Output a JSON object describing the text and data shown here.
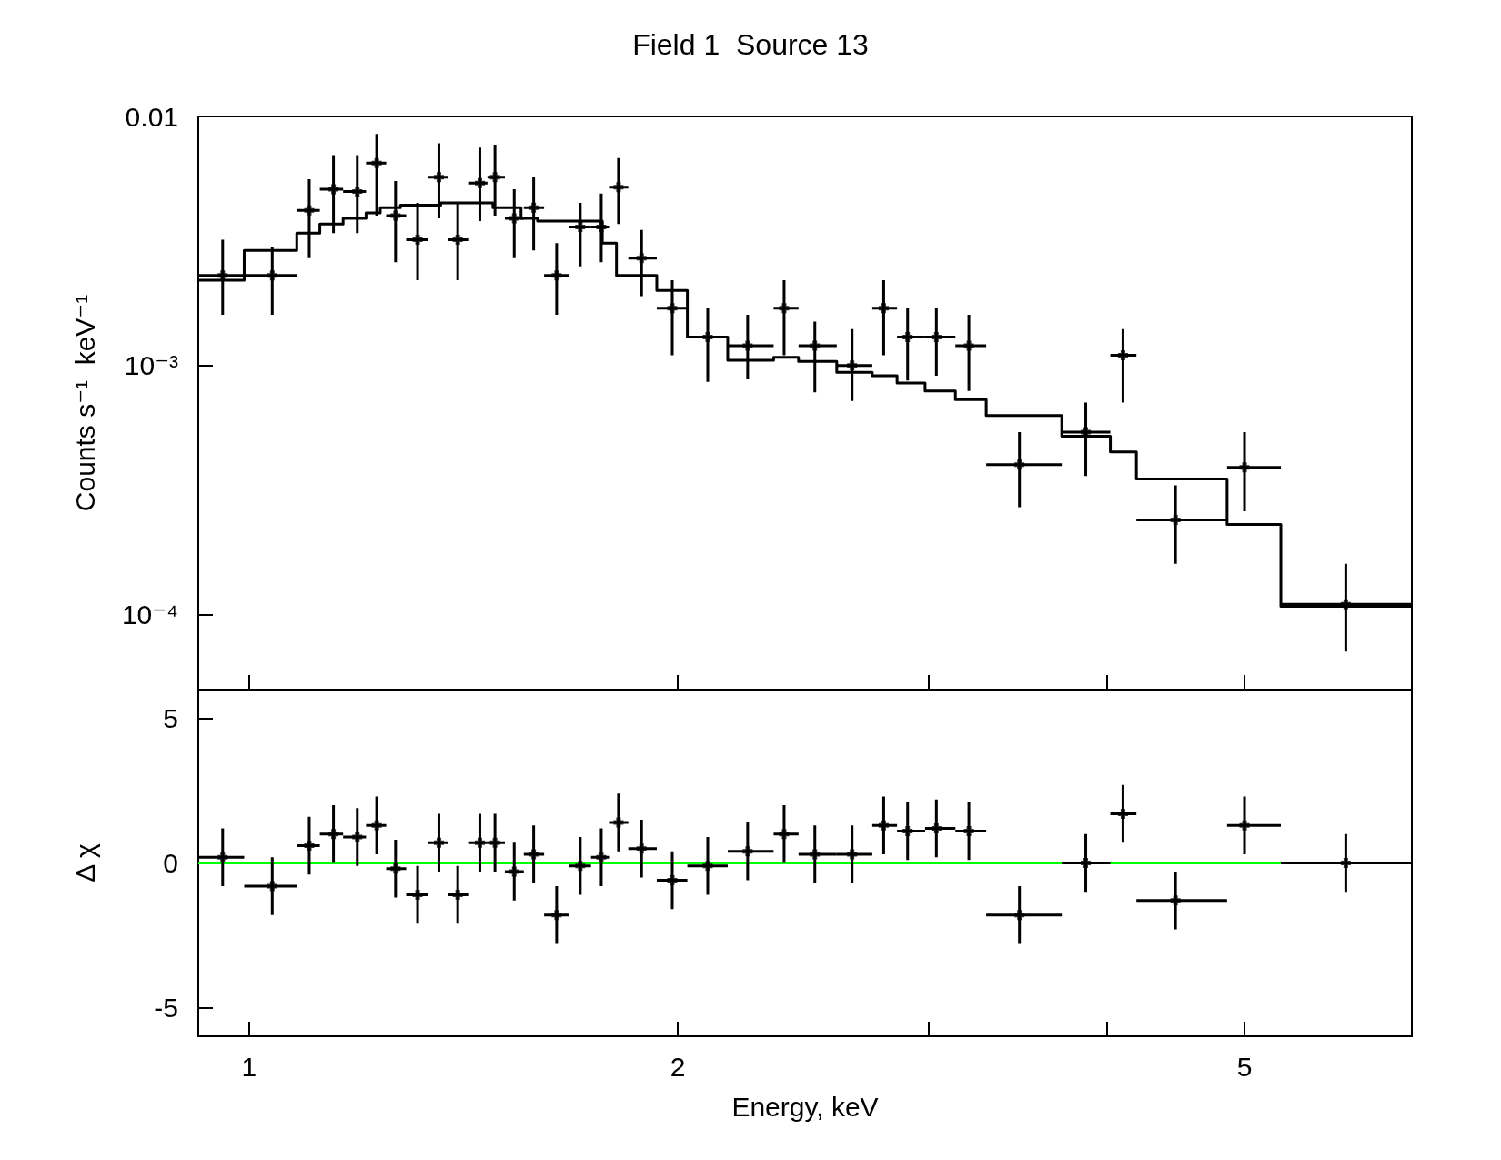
{
  "chart_data": [
    {
      "type": "scatter",
      "title": "Field 1  Source 13",
      "ylabel": "Counts s⁻¹  keV⁻¹",
      "log": "xy",
      "xlim": [
        0.921,
        6.554
      ],
      "xticks": [
        1,
        2,
        3,
        4,
        5
      ],
      "ylim": [
        5e-05,
        0.01
      ],
      "yticks": [
        0.01,
        {
          "value": 0.001,
          "label": "10⁻³"
        },
        {
          "value": 0.0001,
          "label": "10⁻⁴"
        }
      ],
      "tick_labels": "y",
      "grid": false,
      "x": [
        0.958,
        1.038,
        1.102,
        1.146,
        1.191,
        1.229,
        1.267,
        1.313,
        1.359,
        1.401,
        1.452,
        1.488,
        1.535,
        1.584,
        1.644,
        1.708,
        1.767,
        1.817,
        1.886,
        1.982,
        2.099,
        2.239,
        2.375,
        2.496,
        2.651,
        2.79,
        2.9,
        3.038,
        3.202,
        3.475,
        3.868,
        4.108,
        4.472,
        5.0,
        5.89
      ],
      "series": [
        {
          "color": "#000000",
          "marker": "cross",
          "values": [
            0.0023,
            0.0023,
            0.0042,
            0.0051,
            0.005,
            0.0065,
            0.004,
            0.0032,
            0.0057,
            0.0032,
            0.0054,
            0.0057,
            0.0039,
            0.0043,
            0.0023,
            0.0036,
            0.0036,
            0.0052,
            0.0027,
            0.0017,
            0.0013,
            0.0012,
            0.0017,
            0.0012,
            0.001,
            0.0017,
            0.0013,
            0.0013,
            0.0012,
            0.0004,
            0.00054,
            0.0011,
            0.00024,
            0.00039,
            0.00011
          ],
          "errors": [
            [
              0.0016,
              0.0032
            ],
            [
              0.0016,
              0.003
            ],
            [
              0.0027,
              0.0056
            ],
            [
              0.0034,
              0.007
            ],
            [
              0.0034,
              0.007
            ],
            [
              0.004,
              0.0085
            ],
            [
              0.0026,
              0.0055
            ],
            [
              0.0022,
              0.0045
            ],
            [
              0.0039,
              0.0078
            ],
            [
              0.0022,
              0.0045
            ],
            [
              0.0038,
              0.0075
            ],
            [
              0.004,
              0.0077
            ],
            [
              0.0027,
              0.0051
            ],
            [
              0.0029,
              0.0057
            ],
            [
              0.0016,
              0.0031
            ],
            [
              0.0025,
              0.0045
            ],
            [
              0.0026,
              0.0049
            ],
            [
              0.0037,
              0.0068
            ],
            [
              0.0019,
              0.0035
            ],
            [
              0.0011,
              0.0022
            ],
            [
              0.00086,
              0.0017
            ],
            [
              0.00088,
              0.0016
            ],
            [
              0.0011,
              0.0022
            ],
            [
              0.00078,
              0.0015
            ],
            [
              0.00072,
              0.0014
            ],
            [
              0.0011,
              0.0022
            ],
            [
              0.00087,
              0.0017
            ],
            [
              0.00091,
              0.0017
            ],
            [
              0.00079,
              0.0016
            ],
            [
              0.00027,
              0.00054
            ],
            [
              0.00036,
              0.00071
            ],
            [
              0.00071,
              0.0014
            ],
            [
              0.00016,
              0.00033
            ],
            [
              0.00026,
              0.00054
            ],
            [
              7.1e-05,
              0.00016
            ]
          ],
          "xerrors": [
            [
              0.921,
              0.992
            ],
            [
              0.992,
              1.08
            ],
            [
              1.08,
              1.121
            ],
            [
              1.121,
              1.164
            ],
            [
              1.164,
              1.208
            ],
            [
              1.208,
              1.248
            ],
            [
              1.248,
              1.289
            ],
            [
              1.289,
              1.336
            ],
            [
              1.336,
              1.38
            ],
            [
              1.38,
              1.427
            ],
            [
              1.427,
              1.47
            ],
            [
              1.47,
              1.512
            ],
            [
              1.512,
              1.559
            ],
            [
              1.559,
              1.611
            ],
            [
              1.611,
              1.677
            ],
            [
              1.677,
              1.738
            ],
            [
              1.738,
              1.792
            ],
            [
              1.792,
              1.846
            ],
            [
              1.846,
              1.933
            ],
            [
              1.933,
              2.031
            ],
            [
              2.031,
              2.168
            ],
            [
              2.168,
              2.335
            ],
            [
              2.335,
              2.431
            ],
            [
              2.431,
              2.586
            ],
            [
              2.586,
              2.739
            ],
            [
              2.739,
              2.851
            ],
            [
              2.851,
              2.983
            ],
            [
              2.983,
              3.133
            ],
            [
              3.133,
              3.293
            ],
            [
              3.293,
              3.721
            ],
            [
              3.721,
              4.025
            ],
            [
              4.025,
              4.198
            ],
            [
              4.198,
              4.861
            ],
            [
              4.861,
              5.303
            ],
            [
              5.303,
              6.554
            ]
          ]
        },
        {
          "type": "step",
          "color": "#000000",
          "marker": "none",
          "line_style": "solid",
          "x": [
            0.921,
            0.992,
            1.08,
            1.121,
            1.164,
            1.208,
            1.236,
            1.277,
            1.363,
            1.483,
            1.552,
            1.594,
            1.77,
            1.811,
            1.933,
            2.031,
            2.168,
            2.335,
            2.431,
            2.586,
            2.739,
            2.851,
            2.983,
            3.133,
            3.293,
            3.721,
            4.025,
            4.198,
            4.861,
            5.303,
            6.554
          ],
          "values": [
            0.0022,
            0.0029,
            0.0034,
            0.0037,
            0.0039,
            0.0041,
            0.0043,
            0.0044,
            0.0045,
            0.0043,
            0.0039,
            0.0038,
            0.0031,
            0.0023,
            0.002,
            0.0013,
            0.00105,
            0.00108,
            0.00104,
            0.00094,
            0.00091,
            0.00085,
            0.00079,
            0.00073,
            0.00063,
            0.00052,
            0.00045,
            0.00035,
            0.00023,
            0.000108,
            0.000108
          ]
        }
      ]
    },
    {
      "type": "scatter",
      "xlabel": "Energy, keV",
      "ylabel": "Δ χ",
      "log": "x",
      "xlim": [
        0.921,
        6.554
      ],
      "xticks": [
        1,
        2,
        {
          "value": 3,
          "label": null
        },
        {
          "value": 4,
          "label": null
        },
        5
      ],
      "ylim": [
        -6,
        6
      ],
      "yticks": [
        -5,
        0,
        5
      ],
      "marker": "cross",
      "grid": false,
      "x": [
        0.958,
        1.038,
        1.102,
        1.146,
        1.191,
        1.229,
        1.267,
        1.313,
        1.359,
        1.401,
        1.452,
        1.488,
        1.535,
        1.584,
        1.644,
        1.708,
        1.767,
        1.817,
        1.886,
        1.982,
        2.099,
        2.239,
        2.375,
        2.496,
        2.651,
        2.79,
        2.9,
        3.038,
        3.202,
        3.475,
        3.868,
        4.108,
        4.472,
        5.0,
        5.89
      ],
      "ref_lines": [
        {
          "axis": "y",
          "value": 0,
          "color": "#00ff00",
          "line_style": "solid"
        }
      ],
      "series": [
        {
          "color": "#000000",
          "values": [
            0.2,
            -0.8,
            0.6,
            1.0,
            0.9,
            1.3,
            -0.2,
            -1.1,
            0.7,
            -1.1,
            0.7,
            0.7,
            -0.3,
            0.3,
            -1.8,
            -0.1,
            0.2,
            1.4,
            0.5,
            -0.6,
            -0.1,
            0.4,
            1.0,
            0.3,
            0.3,
            1.3,
            1.1,
            1.2,
            1.1,
            -1.8,
            0.0,
            1.7,
            -1.3,
            1.3,
            0.0
          ],
          "errors": [
            1,
            1,
            1,
            1,
            1,
            1,
            1,
            1,
            1,
            1,
            1,
            1,
            1,
            1,
            1,
            1,
            1,
            1,
            1,
            1,
            1,
            1,
            1,
            1,
            1,
            1,
            1,
            1,
            1,
            1,
            1,
            1,
            1,
            1,
            1
          ],
          "xerrors": [
            [
              0.921,
              0.992
            ],
            [
              0.992,
              1.08
            ],
            [
              1.08,
              1.121
            ],
            [
              1.121,
              1.164
            ],
            [
              1.164,
              1.208
            ],
            [
              1.208,
              1.248
            ],
            [
              1.248,
              1.289
            ],
            [
              1.289,
              1.336
            ],
            [
              1.336,
              1.38
            ],
            [
              1.38,
              1.427
            ],
            [
              1.427,
              1.47
            ],
            [
              1.47,
              1.512
            ],
            [
              1.512,
              1.559
            ],
            [
              1.559,
              1.611
            ],
            [
              1.611,
              1.677
            ],
            [
              1.677,
              1.738
            ],
            [
              1.738,
              1.792
            ],
            [
              1.792,
              1.846
            ],
            [
              1.846,
              1.933
            ],
            [
              1.933,
              2.031
            ],
            [
              2.031,
              2.168
            ],
            [
              2.168,
              2.335
            ],
            [
              2.335,
              2.431
            ],
            [
              2.431,
              2.586
            ],
            [
              2.586,
              2.739
            ],
            [
              2.739,
              2.851
            ],
            [
              2.851,
              2.983
            ],
            [
              2.983,
              3.133
            ],
            [
              3.133,
              3.293
            ],
            [
              3.293,
              3.721
            ],
            [
              3.721,
              4.025
            ],
            [
              4.025,
              4.198
            ],
            [
              4.198,
              4.861
            ],
            [
              4.861,
              5.303
            ],
            [
              5.303,
              6.554
            ]
          ]
        }
      ]
    }
  ]
}
